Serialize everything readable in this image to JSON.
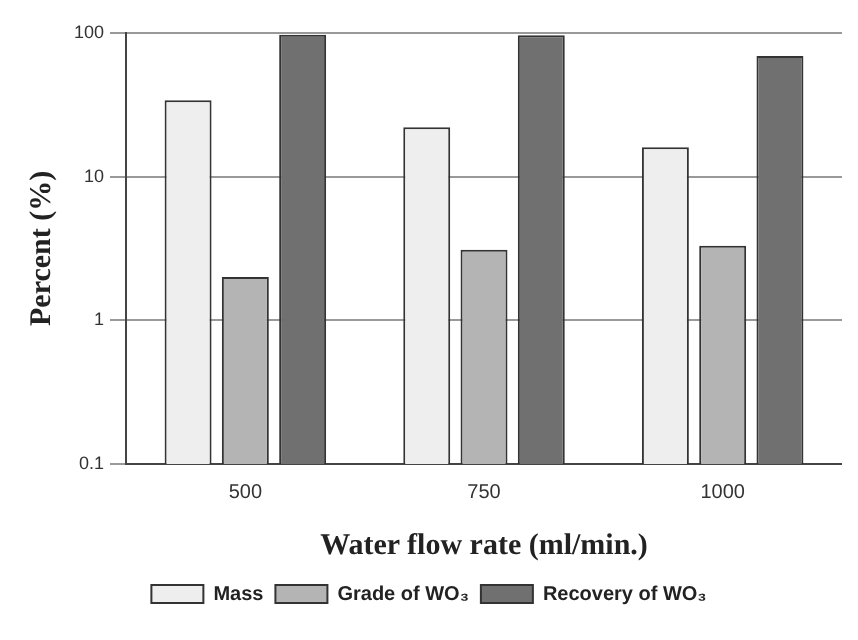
{
  "chart_data": {
    "type": "bar",
    "xlabel": "Water flow rate (ml/min.)",
    "ylabel": "Percent (%)",
    "categories": [
      "500",
      "750",
      "1000"
    ],
    "series": [
      {
        "name": "Mass",
        "color": "#eeeeee",
        "values": [
          34,
          22,
          16
        ]
      },
      {
        "name": "Grade of WO₃",
        "color": "#b4b4b4",
        "values": [
          2.0,
          3.1,
          3.3
        ]
      },
      {
        "name": "Recovery of WO₃",
        "color": "#707070",
        "values": [
          97,
          96,
          69
        ]
      }
    ],
    "log": "y",
    "ylim": [
      0.1,
      100
    ],
    "yticks": [
      0.1,
      1,
      10,
      100
    ],
    "grid": "y",
    "legend": "bottom"
  }
}
